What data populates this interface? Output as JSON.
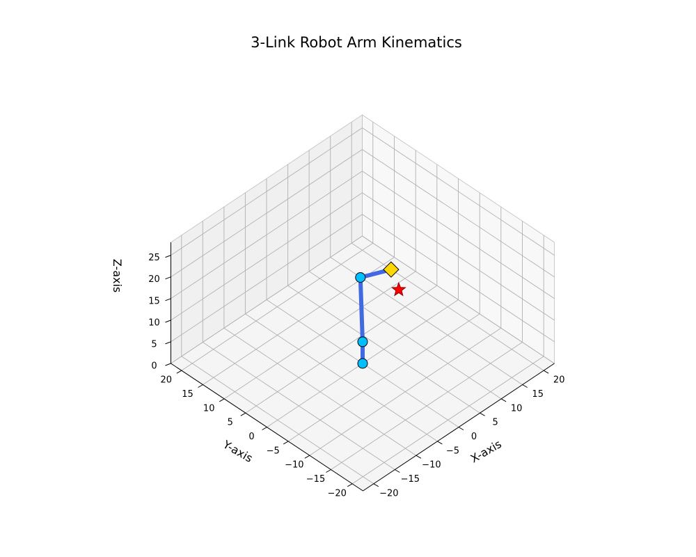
{
  "chart_data": {
    "type": "scatter",
    "projection": "3d",
    "title": "3-Link Robot Arm Kinematics",
    "xlabel": "X-axis",
    "ylabel": "Y-axis",
    "zlabel": "Z-axis",
    "xlim": [
      -22.5,
      22.5
    ],
    "ylim": [
      -22.5,
      22.5
    ],
    "zlim": [
      0,
      28
    ],
    "xticks": [
      -20,
      -15,
      -10,
      -5,
      0,
      5,
      10,
      15,
      20
    ],
    "yticks": [
      -20,
      -15,
      -10,
      -5,
      0,
      5,
      10,
      15,
      20
    ],
    "zticks": [
      0,
      5,
      10,
      15,
      20,
      25
    ],
    "xtick_labels": [
      "−20",
      "−15",
      "−10",
      "−5",
      "0",
      "5",
      "10",
      "15",
      "20"
    ],
    "ytick_labels": [
      "−20",
      "−15",
      "−10",
      "−5",
      "0",
      "5",
      "10",
      "15",
      "20"
    ],
    "ztick_labels": [
      "0",
      "5",
      "10",
      "15",
      "20",
      "25"
    ],
    "view": {
      "elev": 30,
      "azim": 45
    },
    "grid": true,
    "series": [
      {
        "kind": "arm-links",
        "color": "#4169e1",
        "points": [
          {
            "x": 0,
            "y": 0,
            "z": 0
          },
          {
            "x": 0,
            "y": 0,
            "z": 5
          },
          {
            "x": -5.5,
            "y": -5,
            "z": 13
          },
          {
            "x": -3.3,
            "y": -10,
            "z": 13
          }
        ]
      },
      {
        "kind": "joints",
        "marker": "circle",
        "color": "#00bfff",
        "points": [
          {
            "x": 0,
            "y": 0,
            "z": 0
          },
          {
            "x": 0,
            "y": 0,
            "z": 5
          },
          {
            "x": -5.5,
            "y": -5,
            "z": 13
          }
        ]
      },
      {
        "kind": "end-effector",
        "marker": "diamond",
        "color": "#ffd700",
        "points": [
          {
            "x": -3.3,
            "y": -10,
            "z": 13
          }
        ]
      },
      {
        "kind": "target",
        "marker": "star",
        "color": "#ff0000",
        "points": [
          {
            "x": -1.5,
            "y": -10,
            "z": 9.5
          }
        ]
      }
    ]
  }
}
